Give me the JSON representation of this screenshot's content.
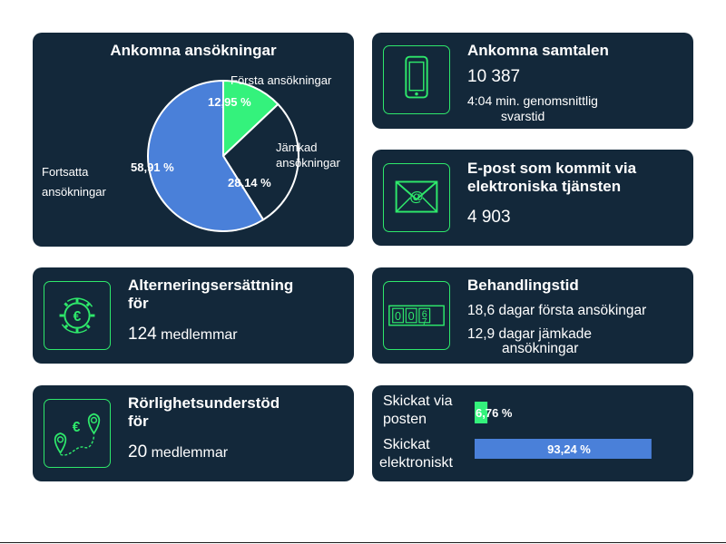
{
  "applications": {
    "title": "Ankomna ansökningar",
    "chart_data": {
      "type": "pie",
      "title": "Ankomna ansökningar",
      "slices": [
        {
          "label": "Första ansökningar",
          "value": 12.95,
          "value_label": "12,95 %",
          "color": "#34f27c"
        },
        {
          "label": "Jämkad ansökningar",
          "value": 28.14,
          "value_label": "28,14 %",
          "color": "#13283a"
        },
        {
          "label": "Fortsatta ansökningar",
          "value": 58.91,
          "value_label": "58,91 %",
          "color": "#4a80d9"
        }
      ]
    },
    "label_first": "Första ansökningar",
    "label_adjusted_line1": "Jämkad",
    "label_adjusted_line2": "ansökningar",
    "label_continued_line1": "Fortsatta",
    "label_continued_line2": "ansökningar"
  },
  "calls": {
    "title": "Ankomna samtalen",
    "count": "10 387",
    "avg_line1": "4:04 min. genomsnittlig",
    "avg_line2": "svarstid",
    "icon": "phone-icon"
  },
  "email": {
    "title_line1": "E-post som kommit via",
    "title_line2": "elektroniska tjänsten",
    "count": "4 903",
    "icon": "email-icon"
  },
  "alternation": {
    "title_line1": "Alterneringsersättning",
    "title_line2": "för",
    "count": "124",
    "unit": "medlemmar",
    "icon": "euro-gear-icon"
  },
  "processing": {
    "title": "Behandlingstid",
    "first_line": "18,6 dagar första ansökingar",
    "adjusted_line1": "12,9 dagar jämkade",
    "adjusted_line2": "ansökningar",
    "icon": "counter-icon",
    "counter_digits": [
      "0",
      "0",
      "6",
      "7"
    ]
  },
  "mobility": {
    "title_line1": "Rörlighetsunderstöd",
    "title_line2": "för",
    "count": "20",
    "unit": "medlemmar",
    "icon": "map-pin-euro-icon"
  },
  "sending": {
    "chart_data": {
      "type": "bar",
      "orientation": "horizontal",
      "categories": [
        "Skickat via posten",
        "Skickat elektroniskt"
      ],
      "values": [
        6.76,
        93.24
      ],
      "value_labels": [
        "6,76 %",
        "93,24 %"
      ],
      "colors": [
        "#34f27c",
        "#4a80d9"
      ]
    },
    "post_line1": "Skickat via",
    "post_line2": "posten",
    "elec_line1": "Skickat",
    "elec_line2": "elektroniskt"
  }
}
